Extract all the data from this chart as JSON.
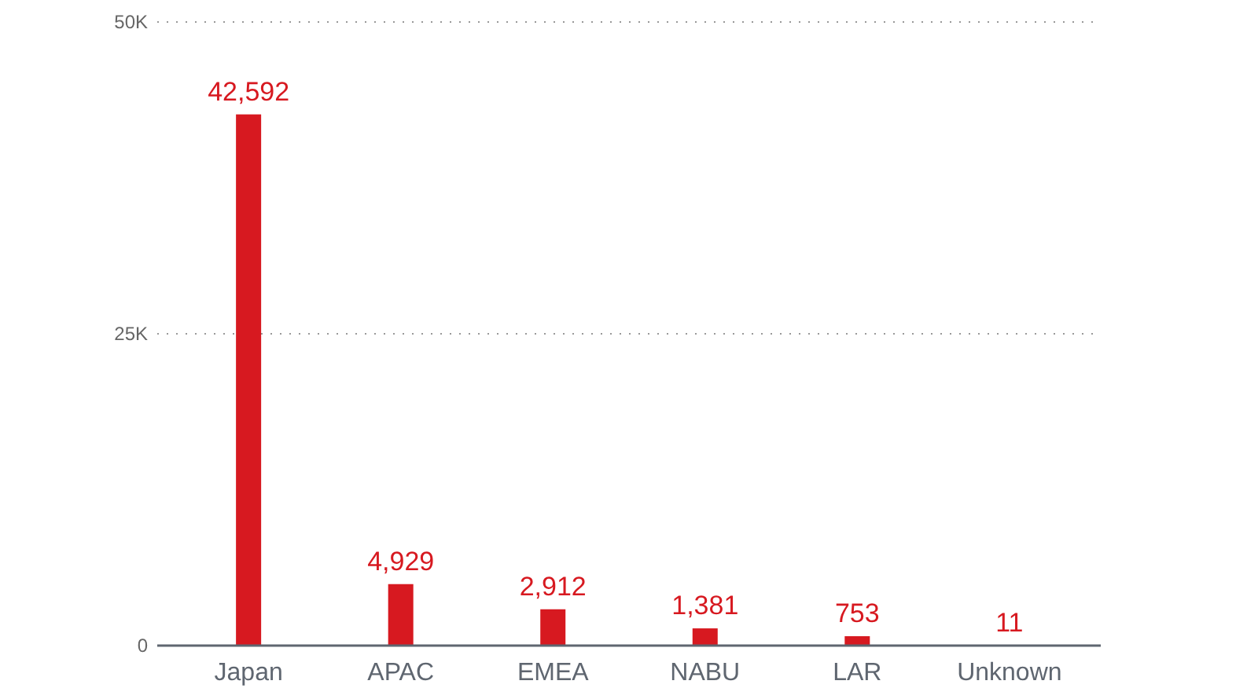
{
  "chart_data": {
    "type": "bar",
    "categories": [
      "Japan",
      "APAC",
      "EMEA",
      "NABU",
      "LAR",
      "Unknown"
    ],
    "values": [
      42592,
      4929,
      2912,
      1381,
      753,
      11
    ],
    "color": "#d71920",
    "ylim": [
      0,
      50000
    ],
    "yticks": [
      {
        "value": 0,
        "label": "0"
      },
      {
        "value": 25000,
        "label": "25K"
      },
      {
        "value": 50000,
        "label": "50K"
      }
    ],
    "grid": "y",
    "value_labels": [
      "42,592",
      "4,929",
      "2,912",
      "1,381",
      "753",
      "11"
    ]
  }
}
